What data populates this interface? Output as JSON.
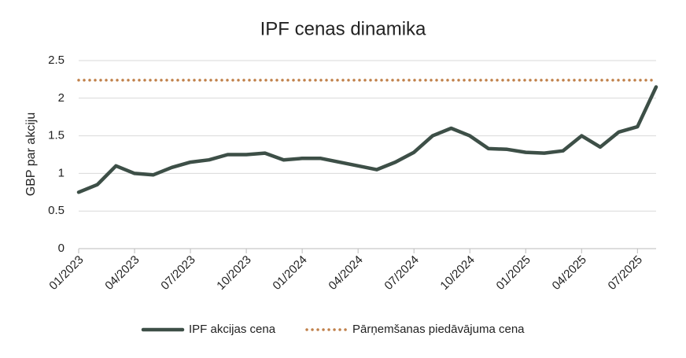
{
  "chart_data": {
    "type": "line",
    "title": "IPF cenas dinamika",
    "y_label": "GBP par akciju",
    "x": [
      "01/2023",
      "02/2023",
      "03/2023",
      "04/2023",
      "05/2023",
      "06/2023",
      "07/2023",
      "08/2023",
      "09/2023",
      "10/2023",
      "11/2023",
      "12/2023",
      "01/2024",
      "02/2024",
      "03/2024",
      "04/2024",
      "05/2024",
      "06/2024",
      "07/2024",
      "08/2024",
      "09/2024",
      "10/2024",
      "11/2024",
      "12/2024",
      "01/2025",
      "02/2025",
      "03/2025",
      "04/2025",
      "05/2025",
      "06/2025",
      "07/2025",
      "08/2025"
    ],
    "series": [
      {
        "name": "IPF akcijas cena",
        "color": "#3d4f47",
        "style": "solid",
        "values": [
          0.75,
          0.85,
          1.1,
          1.0,
          0.98,
          1.08,
          1.15,
          1.18,
          1.25,
          1.25,
          1.27,
          1.18,
          1.2,
          1.2,
          1.15,
          1.1,
          1.05,
          1.15,
          1.28,
          1.5,
          1.6,
          1.5,
          1.33,
          1.32,
          1.28,
          1.27,
          1.3,
          1.5,
          1.35,
          1.55,
          1.62,
          2.15
        ]
      },
      {
        "name": "Pārņemšanas piedāvājuma cena",
        "color": "#c0804a",
        "style": "dotted",
        "values": [
          2.24,
          2.24,
          2.24,
          2.24,
          2.24,
          2.24,
          2.24,
          2.24,
          2.24,
          2.24,
          2.24,
          2.24,
          2.24,
          2.24,
          2.24,
          2.24,
          2.24,
          2.24,
          2.24,
          2.24,
          2.24,
          2.24,
          2.24,
          2.24,
          2.24,
          2.24,
          2.24,
          2.24,
          2.24,
          2.24,
          2.24,
          2.24
        ]
      }
    ],
    "xlim": [
      "01/2023",
      "08/2025"
    ],
    "xticks": [
      "01/2023",
      "04/2023",
      "07/2023",
      "10/2023",
      "01/2024",
      "04/2024",
      "07/2024",
      "10/2024",
      "01/2025",
      "04/2025",
      "07/2025"
    ],
    "ylim": [
      0,
      2.5
    ],
    "yticks": [
      0,
      0.5,
      1,
      1.5,
      2,
      2.5
    ],
    "grid": true,
    "legend": "bottom"
  }
}
